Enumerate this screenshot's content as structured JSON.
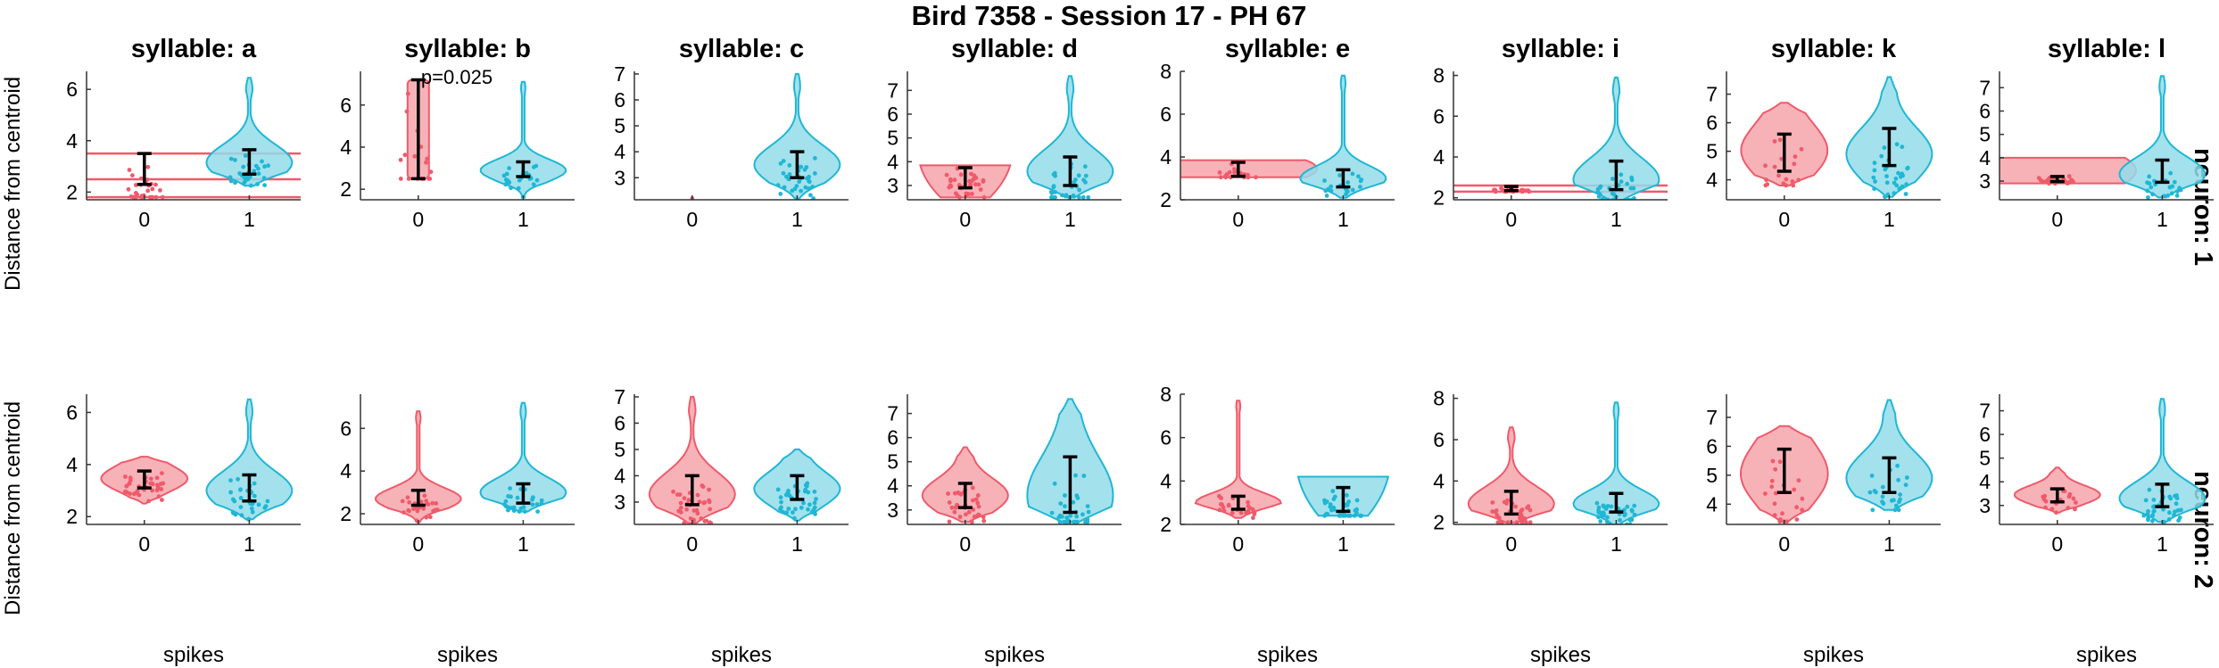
{
  "figure": {
    "title": "Bird 7358 - Session 17 - PH 67",
    "ylabel": "Distance from centroid",
    "xlabel": "spikes",
    "row_labels": [
      "neuron: 1",
      "neuron: 2"
    ],
    "colors": {
      "spikes_0": "#f05a6a",
      "spikes_0_fill": "#f6a4ab",
      "spikes_1": "#1fb7d4",
      "spikes_1_fill": "#93dcea"
    }
  },
  "chart_data": [
    {
      "type": "violin",
      "title": "syllable: a",
      "row": "neuron: 1",
      "categories": [
        "0",
        "1"
      ],
      "ylim": [
        1.7,
        6.7
      ],
      "yticks": [
        2,
        4,
        6
      ],
      "annotation": "",
      "groups": [
        {
          "spikes": "0",
          "median": 2.5,
          "q1": 2.3,
          "q3": 3.5,
          "min": 1.8,
          "max": 3.5,
          "shape": "band",
          "band_levels": [
            1.8,
            2.5,
            3.5
          ]
        },
        {
          "spikes": "1",
          "median": 3.15,
          "q1": 2.7,
          "q3": 3.65,
          "min": 2.25,
          "max": 6.45,
          "shape": "violin"
        }
      ]
    },
    {
      "type": "violin",
      "title": "syllable: b",
      "row": "neuron: 1",
      "categories": [
        "0",
        "1"
      ],
      "ylim": [
        1.5,
        7.6
      ],
      "yticks": [
        2,
        4,
        6
      ],
      "annotation": "p=0.025",
      "groups": [
        {
          "spikes": "0",
          "median": 4.8,
          "q1": 2.5,
          "q3": 7.2,
          "min": 2.5,
          "max": 7.2,
          "shape": "rect"
        },
        {
          "spikes": "1",
          "median": 2.9,
          "q1": 2.6,
          "q3": 3.3,
          "min": 1.6,
          "max": 7.1,
          "shape": "violin"
        }
      ]
    },
    {
      "type": "violin",
      "title": "syllable: c",
      "row": "neuron: 1",
      "categories": [
        "0",
        "1"
      ],
      "ylim": [
        2.15,
        7.1
      ],
      "yticks": [
        3,
        4,
        5,
        6,
        7
      ],
      "annotation": "",
      "groups": [
        {
          "spikes": "0",
          "median": 2.2,
          "q1": 2.2,
          "q3": 2.2,
          "min": 2.2,
          "max": 2.2,
          "shape": "none"
        },
        {
          "spikes": "1",
          "median": 3.5,
          "q1": 3.0,
          "q3": 4.0,
          "min": 2.2,
          "max": 7.0,
          "shape": "violin"
        }
      ]
    },
    {
      "type": "violin",
      "title": "syllable: d",
      "row": "neuron: 1",
      "categories": [
        "0",
        "1"
      ],
      "ylim": [
        2.4,
        7.8
      ],
      "yticks": [
        3,
        4,
        5,
        6,
        7
      ],
      "annotation": "",
      "groups": [
        {
          "spikes": "0",
          "median": 3.35,
          "q1": 2.9,
          "q3": 3.75,
          "min": 2.5,
          "max": 3.85,
          "shape": "wide"
        },
        {
          "spikes": "1",
          "median": 3.6,
          "q1": 3.0,
          "q3": 4.2,
          "min": 2.5,
          "max": 7.6,
          "shape": "violin"
        }
      ]
    },
    {
      "type": "violin",
      "title": "syllable: e",
      "row": "neuron: 1",
      "categories": [
        "0",
        "1"
      ],
      "ylim": [
        2.0,
        8.0
      ],
      "yticks": [
        2,
        4,
        6,
        8
      ],
      "annotation": "",
      "groups": [
        {
          "spikes": "0",
          "median": 3.4,
          "q1": 3.1,
          "q3": 3.75,
          "min": 3.05,
          "max": 3.85,
          "shape": "wideband"
        },
        {
          "spikes": "1",
          "median": 3.0,
          "q1": 2.6,
          "q3": 3.4,
          "min": 2.1,
          "max": 7.8,
          "shape": "violin"
        }
      ]
    },
    {
      "type": "violin",
      "title": "syllable: i",
      "row": "neuron: 1",
      "categories": [
        "0",
        "1"
      ],
      "ylim": [
        1.9,
        8.2
      ],
      "yticks": [
        2,
        4,
        6,
        8
      ],
      "annotation": "",
      "groups": [
        {
          "spikes": "0",
          "median": 2.45,
          "q1": 2.35,
          "q3": 2.55,
          "min": 2.3,
          "max": 2.6,
          "shape": "band"
        },
        {
          "spikes": "1",
          "median": 2.9,
          "q1": 2.4,
          "q3": 3.8,
          "min": 1.9,
          "max": 7.9,
          "shape": "violin"
        }
      ]
    },
    {
      "type": "violin",
      "title": "syllable: k",
      "row": "neuron: 1",
      "categories": [
        "0",
        "1"
      ],
      "ylim": [
        3.3,
        7.8
      ],
      "yticks": [
        4,
        5,
        6,
        7
      ],
      "annotation": "",
      "groups": [
        {
          "spikes": "0",
          "median": 5.0,
          "q1": 4.3,
          "q3": 5.6,
          "min": 3.8,
          "max": 6.7,
          "shape": "violin"
        },
        {
          "spikes": "1",
          "median": 4.9,
          "q1": 4.5,
          "q3": 5.8,
          "min": 3.4,
          "max": 7.6,
          "shape": "violin"
        }
      ]
    },
    {
      "type": "violin",
      "title": "syllable: l",
      "row": "neuron: 1",
      "categories": [
        "0",
        "1"
      ],
      "ylim": [
        2.2,
        7.7
      ],
      "yticks": [
        3,
        4,
        5,
        6,
        7
      ],
      "annotation": "",
      "groups": [
        {
          "spikes": "0",
          "median": 3.1,
          "q1": 2.98,
          "q3": 3.2,
          "min": 2.9,
          "max": 4.0,
          "shape": "wideband"
        },
        {
          "spikes": "1",
          "median": 3.3,
          "q1": 2.95,
          "q3": 3.9,
          "min": 2.3,
          "max": 7.5,
          "shape": "violin"
        }
      ]
    },
    {
      "type": "violin",
      "title": "",
      "row": "neuron: 2",
      "categories": [
        "0",
        "1"
      ],
      "ylim": [
        1.7,
        6.7
      ],
      "yticks": [
        2,
        4,
        6
      ],
      "annotation": "",
      "groups": [
        {
          "spikes": "0",
          "median": 3.45,
          "q1": 3.1,
          "q3": 3.75,
          "min": 2.5,
          "max": 4.3,
          "shape": "violin"
        },
        {
          "spikes": "1",
          "median": 3.0,
          "q1": 2.6,
          "q3": 3.6,
          "min": 1.9,
          "max": 6.5,
          "shape": "violin"
        }
      ]
    },
    {
      "type": "violin",
      "title": "",
      "row": "neuron: 2",
      "categories": [
        "0",
        "1"
      ],
      "ylim": [
        1.5,
        7.6
      ],
      "yticks": [
        2,
        4,
        6
      ],
      "annotation": "",
      "groups": [
        {
          "spikes": "0",
          "median": 2.7,
          "q1": 2.4,
          "q3": 3.1,
          "min": 1.6,
          "max": 6.8,
          "shape": "violin"
        },
        {
          "spikes": "1",
          "median": 3.0,
          "q1": 2.5,
          "q3": 3.4,
          "min": 2.1,
          "max": 7.2,
          "shape": "violin"
        }
      ]
    },
    {
      "type": "violin",
      "title": "",
      "row": "neuron: 2",
      "categories": [
        "0",
        "1"
      ],
      "ylim": [
        2.15,
        7.1
      ],
      "yticks": [
        3,
        4,
        5,
        6,
        7
      ],
      "annotation": "",
      "groups": [
        {
          "spikes": "0",
          "median": 3.3,
          "q1": 2.9,
          "q3": 4.0,
          "min": 2.2,
          "max": 7.0,
          "shape": "violin"
        },
        {
          "spikes": "1",
          "median": 3.5,
          "q1": 3.1,
          "q3": 4.0,
          "min": 2.3,
          "max": 5.0,
          "shape": "violin"
        }
      ]
    },
    {
      "type": "violin",
      "title": "",
      "row": "neuron: 2",
      "categories": [
        "0",
        "1"
      ],
      "ylim": [
        2.4,
        7.8
      ],
      "yticks": [
        3,
        4,
        5,
        6,
        7
      ],
      "annotation": "",
      "groups": [
        {
          "spikes": "0",
          "median": 3.6,
          "q1": 3.1,
          "q3": 4.1,
          "min": 2.5,
          "max": 5.6,
          "shape": "violin"
        },
        {
          "spikes": "1",
          "median": 3.6,
          "q1": 2.9,
          "q3": 5.2,
          "min": 2.5,
          "max": 7.6,
          "shape": "violin"
        }
      ]
    },
    {
      "type": "violin",
      "title": "",
      "row": "neuron: 2",
      "categories": [
        "0",
        "1"
      ],
      "ylim": [
        2.0,
        8.0
      ],
      "yticks": [
        2,
        4,
        6,
        8
      ],
      "annotation": "",
      "groups": [
        {
          "spikes": "0",
          "median": 3.0,
          "q1": 2.7,
          "q3": 3.3,
          "min": 2.3,
          "max": 7.7,
          "shape": "violin"
        },
        {
          "spikes": "1",
          "median": 3.2,
          "q1": 2.6,
          "q3": 3.7,
          "min": 2.4,
          "max": 4.2,
          "shape": "wide"
        }
      ]
    },
    {
      "type": "violin",
      "title": "",
      "row": "neuron: 2",
      "categories": [
        "0",
        "1"
      ],
      "ylim": [
        1.9,
        8.2
      ],
      "yticks": [
        2,
        4,
        6,
        8
      ],
      "annotation": "",
      "groups": [
        {
          "spikes": "0",
          "median": 2.9,
          "q1": 2.4,
          "q3": 3.5,
          "min": 2.0,
          "max": 6.6,
          "shape": "violin"
        },
        {
          "spikes": "1",
          "median": 2.9,
          "q1": 2.5,
          "q3": 3.4,
          "min": 1.9,
          "max": 7.8,
          "shape": "violin"
        }
      ]
    },
    {
      "type": "violin",
      "title": "",
      "row": "neuron: 2",
      "categories": [
        "0",
        "1"
      ],
      "ylim": [
        3.3,
        7.8
      ],
      "yticks": [
        4,
        5,
        6,
        7
      ],
      "annotation": "",
      "groups": [
        {
          "spikes": "0",
          "median": 5.0,
          "q1": 4.4,
          "q3": 5.9,
          "min": 3.4,
          "max": 6.7,
          "shape": "violin"
        },
        {
          "spikes": "1",
          "median": 4.9,
          "q1": 4.4,
          "q3": 5.6,
          "min": 3.8,
          "max": 7.6,
          "shape": "violin"
        }
      ]
    },
    {
      "type": "violin",
      "title": "",
      "row": "neuron: 2",
      "categories": [
        "0",
        "1"
      ],
      "ylim": [
        2.2,
        7.7
      ],
      "yticks": [
        3,
        4,
        5,
        6,
        7
      ],
      "annotation": "",
      "groups": [
        {
          "spikes": "0",
          "median": 3.45,
          "q1": 3.15,
          "q3": 3.7,
          "min": 2.7,
          "max": 4.6,
          "shape": "violin"
        },
        {
          "spikes": "1",
          "median": 3.3,
          "q1": 2.95,
          "q3": 3.9,
          "min": 2.3,
          "max": 7.5,
          "shape": "violin"
        }
      ]
    }
  ]
}
